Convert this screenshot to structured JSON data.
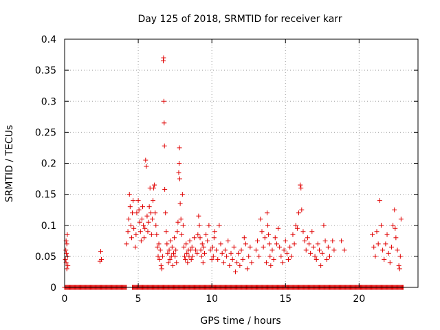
{
  "chart_data": {
    "type": "scatter",
    "title": "Day 125 of 2018, SRMTID for receiver karr",
    "xlabel": "GPS time / hours",
    "ylabel": "SRMTID / TECUs",
    "xlim": [
      0,
      24
    ],
    "ylim": [
      0,
      0.4
    ],
    "xticks": [
      0,
      5,
      10,
      15,
      20
    ],
    "xtick_labels": [
      "0",
      "5",
      "10",
      "15",
      "20"
    ],
    "yticks": [
      0,
      0.05,
      0.1,
      0.15,
      0.2,
      0.25,
      0.3,
      0.35,
      0.4
    ],
    "ytick_labels": [
      "0",
      "0.05",
      "0.1",
      "0.15",
      "0.2",
      "0.25",
      "0.3",
      "0.35",
      "0.4"
    ],
    "grid": true,
    "marker": "+",
    "color": "#e00000",
    "series": [
      {
        "name": "SRMTID",
        "points": [
          [
            0.05,
            0.045
          ],
          [
            0.08,
            0.06
          ],
          [
            0.1,
            0.04
          ],
          [
            0.12,
            0.055
          ],
          [
            0.15,
            0.07
          ],
          [
            0.18,
            0.085
          ],
          [
            0.2,
            0.05
          ],
          [
            0.22,
            0.035
          ],
          [
            0.1,
            0.075
          ],
          [
            0.15,
            0.03
          ],
          [
            2.4,
            0.042
          ],
          [
            2.45,
            0.058
          ],
          [
            2.5,
            0.045
          ],
          [
            4.2,
            0.07
          ],
          [
            4.3,
            0.09
          ],
          [
            4.35,
            0.11
          ],
          [
            4.4,
            0.15
          ],
          [
            4.45,
            0.13
          ],
          [
            4.5,
            0.1
          ],
          [
            4.55,
            0.08
          ],
          [
            4.6,
            0.12
          ],
          [
            4.65,
            0.14
          ],
          [
            4.7,
            0.095
          ],
          [
            4.8,
            0.065
          ],
          [
            4.85,
            0.085
          ],
          [
            4.9,
            0.12
          ],
          [
            5.0,
            0.14
          ],
          [
            5.05,
            0.125
          ],
          [
            5.1,
            0.105
          ],
          [
            5.15,
            0.09
          ],
          [
            5.2,
            0.075
          ],
          [
            5.25,
            0.11
          ],
          [
            5.3,
            0.13
          ],
          [
            5.35,
            0.1
          ],
          [
            5.4,
            0.08
          ],
          [
            5.45,
            0.095
          ],
          [
            5.5,
            0.205
          ],
          [
            5.55,
            0.195
          ],
          [
            5.6,
            0.115
          ],
          [
            5.65,
            0.09
          ],
          [
            5.7,
            0.105
          ],
          [
            5.75,
            0.13
          ],
          [
            5.8,
            0.16
          ],
          [
            5.85,
            0.12
          ],
          [
            5.9,
            0.085
          ],
          [
            5.95,
            0.11
          ],
          [
            6.0,
            0.14
          ],
          [
            6.05,
            0.16
          ],
          [
            6.1,
            0.165
          ],
          [
            6.15,
            0.12
          ],
          [
            6.2,
            0.1
          ],
          [
            6.25,
            0.085
          ],
          [
            6.3,
            0.065
          ],
          [
            6.35,
            0.05
          ],
          [
            6.4,
            0.07
          ],
          [
            6.45,
            0.045
          ],
          [
            6.5,
            0.06
          ],
          [
            6.55,
            0.035
          ],
          [
            6.6,
            0.03
          ],
          [
            6.65,
            0.05
          ],
          [
            6.7,
            0.365
          ],
          [
            6.72,
            0.37
          ],
          [
            6.74,
            0.3
          ],
          [
            6.76,
            0.265
          ],
          [
            6.78,
            0.228
          ],
          [
            6.8,
            0.158
          ],
          [
            6.85,
            0.12
          ],
          [
            6.9,
            0.09
          ],
          [
            6.95,
            0.07
          ],
          [
            7.0,
            0.055
          ],
          [
            7.05,
            0.04
          ],
          [
            7.1,
            0.06
          ],
          [
            7.15,
            0.045
          ],
          [
            7.2,
            0.075
          ],
          [
            7.25,
            0.05
          ],
          [
            7.3,
            0.065
          ],
          [
            7.35,
            0.035
          ],
          [
            7.4,
            0.055
          ],
          [
            7.45,
            0.08
          ],
          [
            7.5,
            0.05
          ],
          [
            7.55,
            0.06
          ],
          [
            7.6,
            0.04
          ],
          [
            7.65,
            0.09
          ],
          [
            7.7,
            0.105
          ],
          [
            7.75,
            0.185
          ],
          [
            7.78,
            0.2
          ],
          [
            7.8,
            0.225
          ],
          [
            7.82,
            0.175
          ],
          [
            7.85,
            0.135
          ],
          [
            7.9,
            0.11
          ],
          [
            7.95,
            0.085
          ],
          [
            8.0,
            0.15
          ],
          [
            8.05,
            0.1
          ],
          [
            8.1,
            0.065
          ],
          [
            8.15,
            0.05
          ],
          [
            8.2,
            0.045
          ],
          [
            8.25,
            0.07
          ],
          [
            8.3,
            0.055
          ],
          [
            8.35,
            0.04
          ],
          [
            8.4,
            0.06
          ],
          [
            8.45,
            0.05
          ],
          [
            8.5,
            0.075
          ],
          [
            8.55,
            0.06
          ],
          [
            8.6,
            0.045
          ],
          [
            8.65,
            0.065
          ],
          [
            8.7,
            0.05
          ],
          [
            8.8,
            0.08
          ],
          [
            8.9,
            0.06
          ],
          [
            9.0,
            0.055
          ],
          [
            9.05,
            0.085
          ],
          [
            9.1,
            0.115
          ],
          [
            9.15,
            0.1
          ],
          [
            9.2,
            0.08
          ],
          [
            9.25,
            0.06
          ],
          [
            9.3,
            0.05
          ],
          [
            9.35,
            0.07
          ],
          [
            9.4,
            0.04
          ],
          [
            9.45,
            0.065
          ],
          [
            9.5,
            0.055
          ],
          [
            9.6,
            0.085
          ],
          [
            9.7,
            0.075
          ],
          [
            9.8,
            0.1
          ],
          [
            9.9,
            0.06
          ],
          [
            10.0,
            0.045
          ],
          [
            10.05,
            0.065
          ],
          [
            10.1,
            0.05
          ],
          [
            10.15,
            0.08
          ],
          [
            10.2,
            0.09
          ],
          [
            10.3,
            0.06
          ],
          [
            10.4,
            0.045
          ],
          [
            10.5,
            0.1
          ],
          [
            10.6,
            0.07
          ],
          [
            10.7,
            0.055
          ],
          [
            10.8,
            0.04
          ],
          [
            10.9,
            0.06
          ],
          [
            11.0,
            0.05
          ],
          [
            11.1,
            0.075
          ],
          [
            11.2,
            0.035
          ],
          [
            11.3,
            0.055
          ],
          [
            11.4,
            0.045
          ],
          [
            11.5,
            0.065
          ],
          [
            11.6,
            0.025
          ],
          [
            11.7,
            0.04
          ],
          [
            11.8,
            0.055
          ],
          [
            11.9,
            0.035
          ],
          [
            12.0,
            0.06
          ],
          [
            12.1,
            0.045
          ],
          [
            12.2,
            0.08
          ],
          [
            12.3,
            0.07
          ],
          [
            12.4,
            0.03
          ],
          [
            12.5,
            0.05
          ],
          [
            12.6,
            0.065
          ],
          [
            12.7,
            0.04
          ],
          [
            13.0,
            0.06
          ],
          [
            13.1,
            0.075
          ],
          [
            13.2,
            0.05
          ],
          [
            13.3,
            0.11
          ],
          [
            13.4,
            0.09
          ],
          [
            13.5,
            0.065
          ],
          [
            13.6,
            0.08
          ],
          [
            13.7,
            0.04
          ],
          [
            13.75,
            0.12
          ],
          [
            13.8,
            0.1
          ],
          [
            13.85,
            0.085
          ],
          [
            13.9,
            0.07
          ],
          [
            13.95,
            0.05
          ],
          [
            14.0,
            0.035
          ],
          [
            14.1,
            0.06
          ],
          [
            14.2,
            0.045
          ],
          [
            14.3,
            0.08
          ],
          [
            14.4,
            0.07
          ],
          [
            14.5,
            0.095
          ],
          [
            14.6,
            0.065
          ],
          [
            14.7,
            0.05
          ],
          [
            14.8,
            0.04
          ],
          [
            14.9,
            0.06
          ],
          [
            15.0,
            0.075
          ],
          [
            15.1,
            0.055
          ],
          [
            15.2,
            0.045
          ],
          [
            15.3,
            0.065
          ],
          [
            15.4,
            0.05
          ],
          [
            15.5,
            0.085
          ],
          [
            15.6,
            0.07
          ],
          [
            15.7,
            0.1
          ],
          [
            15.8,
            0.095
          ],
          [
            15.9,
            0.12
          ],
          [
            16.0,
            0.165
          ],
          [
            16.05,
            0.16
          ],
          [
            16.1,
            0.125
          ],
          [
            16.2,
            0.09
          ],
          [
            16.3,
            0.075
          ],
          [
            16.4,
            0.06
          ],
          [
            16.5,
            0.08
          ],
          [
            16.6,
            0.07
          ],
          [
            16.7,
            0.055
          ],
          [
            16.8,
            0.09
          ],
          [
            16.9,
            0.065
          ],
          [
            17.0,
            0.05
          ],
          [
            17.1,
            0.045
          ],
          [
            17.2,
            0.07
          ],
          [
            17.3,
            0.06
          ],
          [
            17.4,
            0.035
          ],
          [
            17.5,
            0.055
          ],
          [
            17.6,
            0.1
          ],
          [
            17.7,
            0.075
          ],
          [
            17.8,
            0.045
          ],
          [
            17.9,
            0.065
          ],
          [
            18.0,
            0.05
          ],
          [
            18.2,
            0.075
          ],
          [
            18.3,
            0.06
          ],
          [
            18.8,
            0.075
          ],
          [
            19.0,
            0.06
          ],
          [
            20.9,
            0.085
          ],
          [
            21.0,
            0.065
          ],
          [
            21.1,
            0.05
          ],
          [
            21.2,
            0.09
          ],
          [
            21.3,
            0.07
          ],
          [
            21.4,
            0.14
          ],
          [
            21.5,
            0.1
          ],
          [
            21.6,
            0.06
          ],
          [
            21.7,
            0.045
          ],
          [
            21.8,
            0.07
          ],
          [
            21.9,
            0.085
          ],
          [
            22.0,
            0.055
          ],
          [
            22.1,
            0.04
          ],
          [
            22.2,
            0.065
          ],
          [
            22.3,
            0.1
          ],
          [
            22.4,
            0.125
          ],
          [
            22.45,
            0.095
          ],
          [
            22.5,
            0.08
          ],
          [
            22.6,
            0.06
          ],
          [
            22.7,
            0.035
          ],
          [
            22.75,
            0.03
          ],
          [
            22.8,
            0.05
          ],
          [
            22.85,
            0.11
          ]
        ],
        "zero_intervals": [
          [
            0,
            4.2
          ],
          [
            4.6,
            23.0
          ]
        ]
      }
    ]
  }
}
